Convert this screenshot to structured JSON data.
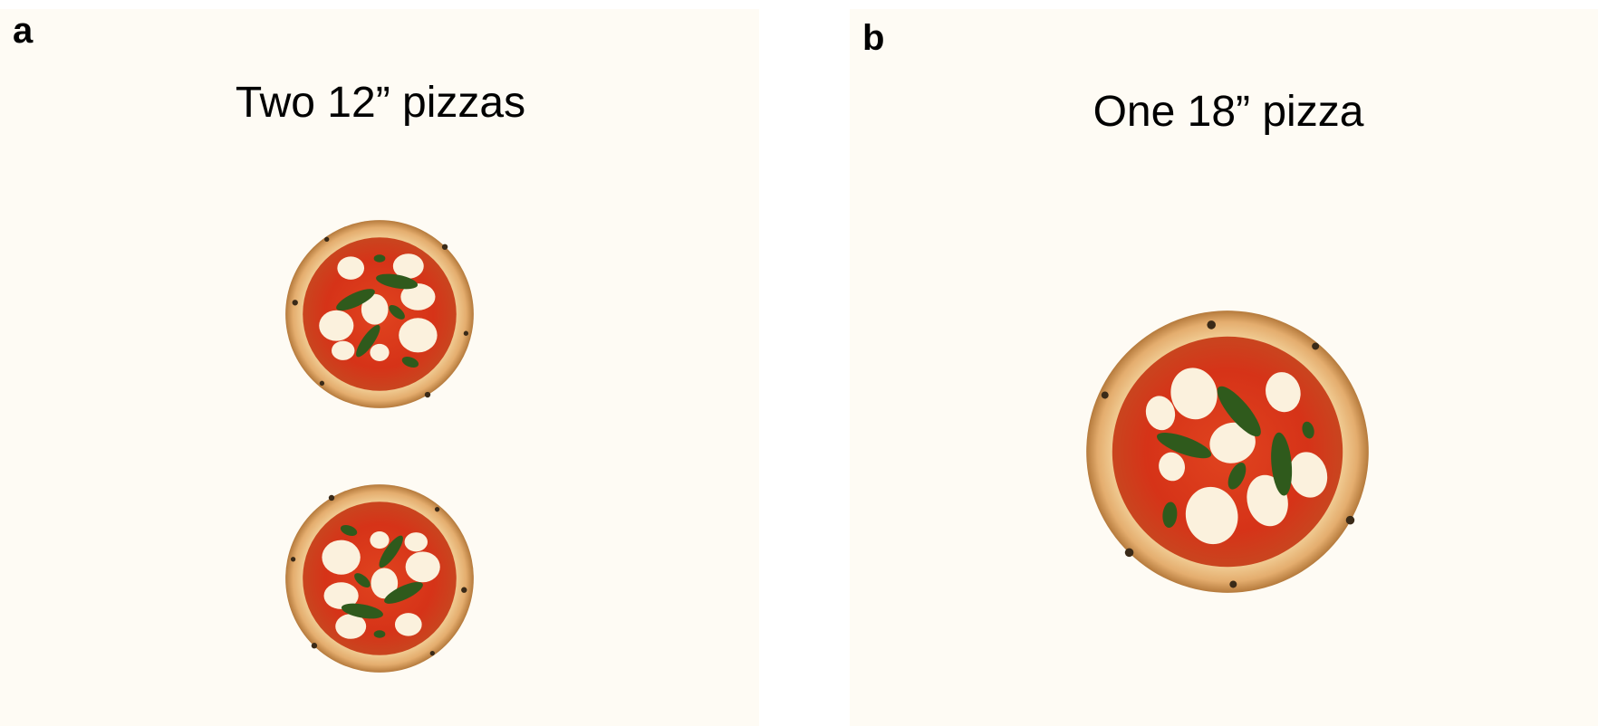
{
  "panels": [
    {
      "letter": "a",
      "caption": "Two 12” pizzas"
    },
    {
      "letter": "b",
      "caption": "One 18” pizza"
    }
  ],
  "colors": {
    "background": "#fefbf4",
    "crust": "#e9b779",
    "sauce": "#d9351b",
    "cheese": "#fbf1dd",
    "basil": "#2f5a1c"
  },
  "icons": [
    "pizza-image"
  ]
}
